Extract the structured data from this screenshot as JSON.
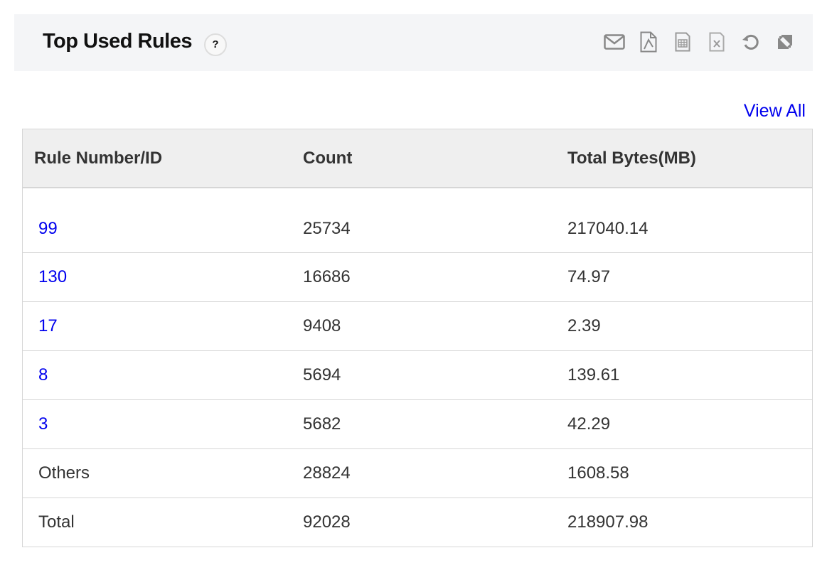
{
  "header": {
    "title": "Top Used Rules",
    "help": "?",
    "icons": [
      "mail-icon",
      "pdf-icon",
      "csv-icon",
      "excel-icon",
      "refresh-icon",
      "collapse-icon"
    ]
  },
  "view_all": "View All",
  "table": {
    "columns": [
      "Rule Number/ID",
      "Count",
      "Total Bytes(MB)"
    ],
    "rows": [
      {
        "rule": "99",
        "count": "25734",
        "bytes": "217040.14",
        "link": true
      },
      {
        "rule": "130",
        "count": "16686",
        "bytes": "74.97",
        "link": true
      },
      {
        "rule": "17",
        "count": "9408",
        "bytes": "2.39",
        "link": true
      },
      {
        "rule": "8",
        "count": "5694",
        "bytes": "139.61",
        "link": true
      },
      {
        "rule": "3",
        "count": "5682",
        "bytes": "42.29",
        "link": true
      },
      {
        "rule": "Others",
        "count": "28824",
        "bytes": "1608.58",
        "link": false
      },
      {
        "rule": "Total",
        "count": "92028",
        "bytes": "218907.98",
        "link": false
      }
    ]
  }
}
